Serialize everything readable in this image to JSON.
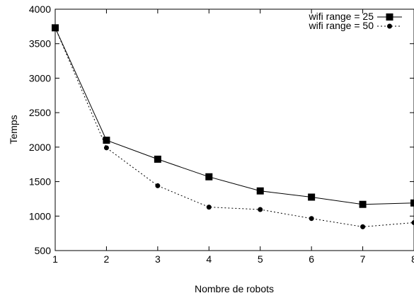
{
  "chart_data": {
    "type": "line",
    "xlabel": "Nombre de robots",
    "ylabel": "Temps",
    "xlim": [
      1,
      8
    ],
    "ylim": [
      500,
      4000
    ],
    "x_ticks": [
      1,
      2,
      3,
      4,
      5,
      6,
      7,
      8
    ],
    "y_ticks": [
      500,
      1000,
      1500,
      2000,
      2500,
      3000,
      3500,
      4000
    ],
    "grid": false,
    "legend_position": "top-right",
    "x": [
      1,
      2,
      3,
      4,
      5,
      6,
      7,
      8
    ],
    "series": [
      {
        "name": "wifi range = 25",
        "values": [
          3730,
          2100,
          1825,
          1570,
          1365,
          1275,
          1170,
          1190
        ],
        "color": "#000000",
        "line": "solid",
        "marker": "square"
      },
      {
        "name": "wifi range = 50",
        "values": [
          3730,
          1990,
          1440,
          1130,
          1095,
          965,
          845,
          905
        ],
        "color": "#000000",
        "line": "dotted",
        "marker": "circle"
      }
    ]
  }
}
